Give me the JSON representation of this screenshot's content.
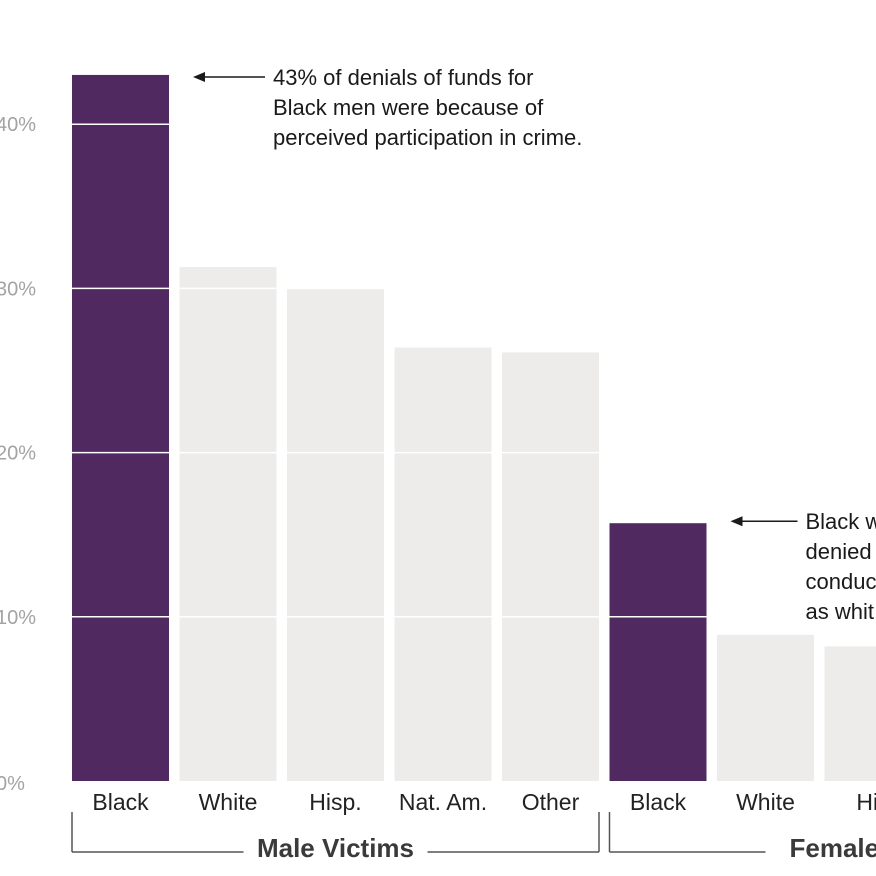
{
  "chart_data": {
    "type": "bar",
    "yticks": [
      "0%",
      "10%",
      "20%",
      "30%",
      "40%"
    ],
    "ylim": [
      0,
      43
    ],
    "grid": true,
    "categories": [
      "Black",
      "White",
      "Hisp.",
      "Nat. Am.",
      "Other",
      "Black",
      "White",
      "His"
    ],
    "values": [
      43,
      31.3,
      30,
      26.4,
      26.1,
      15.7,
      8.9,
      8.2
    ],
    "highlight": [
      true,
      false,
      false,
      false,
      false,
      true,
      false,
      false
    ],
    "groups": [
      {
        "label": "Male Victims",
        "start": 0,
        "end": 4
      },
      {
        "label": "Female",
        "start": 5,
        "end": 7
      }
    ],
    "annotations": [
      {
        "bar": 0,
        "lines": [
          "43% of denials of funds for",
          "Black men were because of",
          "perceived participation in crime."
        ]
      },
      {
        "bar": 5,
        "lines": [
          "Black w",
          "denied",
          "conduc",
          "as whit"
        ]
      }
    ],
    "colors": {
      "highlight": "#4f2960",
      "bar": "#edeceb",
      "grid": "#ffffff",
      "axis": "#555555"
    }
  }
}
